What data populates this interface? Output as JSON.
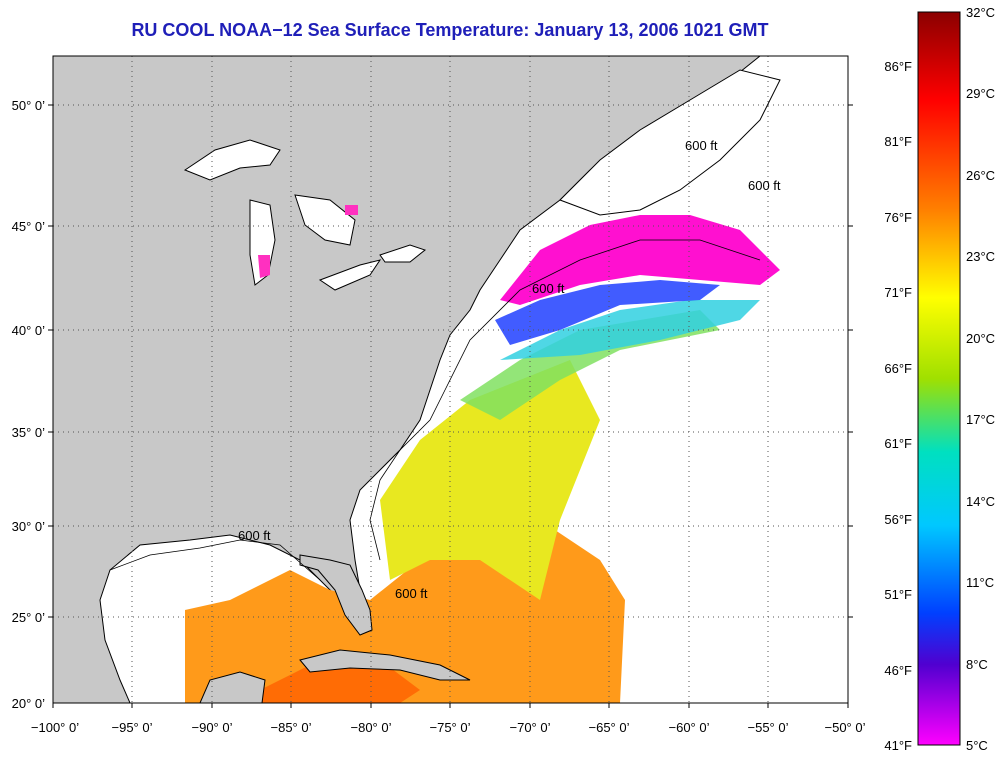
{
  "title": "RU COOL  NOAA−12  Sea Surface Temperature:  January 13, 2006 1021 GMT",
  "map": {
    "lat_labels": [
      "50° 0’",
      "45° 0’",
      "40° 0’",
      "35° 0’",
      "30° 0’",
      "25° 0’",
      "20° 0’"
    ],
    "lon_labels": [
      "−100° 0’",
      "−95° 0’",
      "−90° 0’",
      "−85° 0’",
      "−80° 0’",
      "−75° 0’",
      "−70° 0’",
      "−65° 0’",
      "−60° 0’",
      "−55° 0’",
      "−50° 0’"
    ],
    "isobath_label": "600 ft",
    "colors": {
      "land": "#c8c8c8",
      "ocean_nodata": "#ffffff",
      "grid": "#555555"
    }
  },
  "colorbar": {
    "celsius_labels": [
      "32°C",
      "29°C",
      "26°C",
      "23°C",
      "20°C",
      "17°C",
      "14°C",
      "11°C",
      "8°C",
      "5°C"
    ],
    "fahrenheit_labels": [
      "86°F",
      "81°F",
      "76°F",
      "71°F",
      "66°F",
      "61°F",
      "56°F",
      "51°F",
      "46°F",
      "41°F"
    ],
    "gradient": [
      "#8b0000",
      "#ff0000",
      "#ff7f00",
      "#ffff00",
      "#a0e000",
      "#00e0c0",
      "#00c8ff",
      "#0050ff",
      "#4000ff",
      "#ff00ff"
    ]
  }
}
